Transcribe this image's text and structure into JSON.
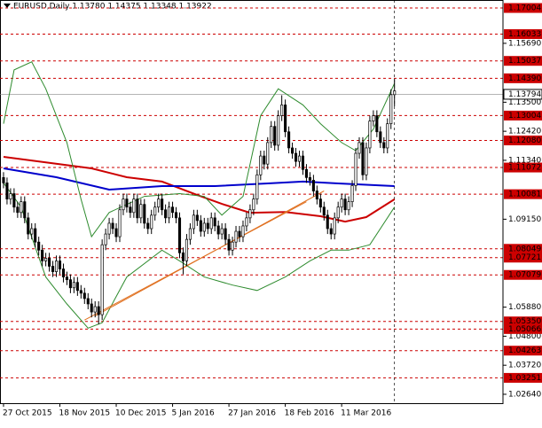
{
  "chart_data": {
    "type": "candlestick",
    "title": "EURUSD,Daily  1.13780 1.14375 1.13348 1.13922",
    "xlim": [
      -1,
      141.8
    ],
    "ylim": [
      1.02309,
      1.17301
    ],
    "xticks": [
      {
        "value": 0,
        "label": "27 Oct 2015"
      },
      {
        "value": 16,
        "label": "18 Nov 2015"
      },
      {
        "value": 32,
        "label": "10 Dec 2015"
      },
      {
        "value": 48,
        "label": "5 Jan 2016"
      },
      {
        "value": 64,
        "label": "27 Jan 2016"
      },
      {
        "value": 80,
        "label": "18 Feb 2016"
      },
      {
        "value": 96,
        "label": "11 Mar 2016"
      }
    ],
    "yticks": [
      {
        "value": 1.1569,
        "label": "1.15690"
      },
      {
        "value": 1.135,
        "label": "1.13500"
      },
      {
        "value": 1.1242,
        "label": "1.12420"
      },
      {
        "value": 1.1134,
        "label": "1.11340"
      },
      {
        "value": 1.0915,
        "label": "1.09150"
      },
      {
        "value": 1.0588,
        "label": "1.05880"
      },
      {
        "value": 1.048,
        "label": "1.04800"
      },
      {
        "value": 1.0372,
        "label": "1.03720"
      },
      {
        "value": 1.0264,
        "label": "1.02640"
      }
    ],
    "levels_color": "#cc0000",
    "levels": [
      1.17004,
      1.16033,
      1.15037,
      {
        "value": 1.1439,
        "label": "1.14390"
      },
      1.13004,
      {
        "value": 1.1208,
        "label": "1.12080"
      },
      1.11072,
      1.10081,
      1.08049,
      1.07721,
      1.07079,
      {
        "value": 1.0535,
        "label": "1.05350"
      },
      1.05066,
      1.04263,
      1.03251
    ],
    "price_box": 1.13794,
    "up_color": "#ffffff",
    "down_color": "#000000",
    "open": [
      1.107,
      1.105,
      1.099,
      1.101,
      1.096,
      1.094,
      1.098,
      1.092,
      1.086,
      1.088,
      1.083,
      1.08,
      1.076,
      1.077,
      1.074,
      1.072,
      1.076,
      1.073,
      1.07,
      1.069,
      1.066,
      1.068,
      1.065,
      1.064,
      1.062,
      1.06,
      1.057,
      1.059,
      1.056,
      1.082,
      1.086,
      1.09,
      1.088,
      1.085,
      1.095,
      1.099,
      1.096,
      1.094,
      1.099,
      1.092,
      1.097,
      1.09,
      1.088,
      1.093,
      1.096,
      1.099,
      1.095,
      1.092,
      1.096,
      1.094,
      1.092,
      1.079,
      1.076,
      1.084,
      1.088,
      1.093,
      1.091,
      1.087,
      1.09,
      1.088,
      1.092,
      1.089,
      1.086,
      1.088,
      1.084,
      1.08,
      1.083,
      1.087,
      1.085,
      1.089,
      1.092,
      1.095,
      1.099,
      1.108,
      1.115,
      1.112,
      1.12,
      1.126,
      1.119,
      1.13,
      1.134,
      1.124,
      1.118,
      1.116,
      1.113,
      1.115,
      1.11,
      1.107,
      1.106,
      1.102,
      1.099,
      1.096,
      1.093,
      1.088,
      1.086,
      1.092,
      1.096,
      1.099,
      1.095,
      1.098,
      1.104,
      1.116,
      1.12,
      1.108,
      1.118,
      1.128,
      1.13,
      1.124,
      1.12,
      1.118,
      1.127,
      1.1378
    ],
    "high": [
      1.109,
      1.107,
      1.103,
      1.103,
      1.098,
      1.1,
      1.1,
      1.094,
      1.09,
      1.09,
      1.085,
      1.082,
      1.079,
      1.079,
      1.076,
      1.078,
      1.078,
      1.075,
      1.072,
      1.071,
      1.07,
      1.07,
      1.067,
      1.066,
      1.064,
      1.062,
      1.061,
      1.061,
      1.084,
      1.088,
      1.092,
      1.092,
      1.09,
      1.097,
      1.101,
      1.101,
      1.098,
      1.101,
      1.101,
      1.099,
      1.099,
      1.092,
      1.095,
      1.098,
      1.101,
      1.101,
      1.097,
      1.098,
      1.098,
      1.096,
      1.094,
      1.081,
      1.086,
      1.09,
      1.095,
      1.095,
      1.093,
      1.092,
      1.092,
      1.094,
      1.094,
      1.091,
      1.09,
      1.09,
      1.086,
      1.085,
      1.089,
      1.089,
      1.091,
      1.094,
      1.097,
      1.101,
      1.11,
      1.117,
      1.117,
      1.122,
      1.128,
      1.128,
      1.132,
      1.1376,
      1.136,
      1.126,
      1.12,
      1.118,
      1.117,
      1.117,
      1.112,
      1.109,
      1.108,
      1.104,
      1.101,
      1.098,
      1.095,
      1.09,
      1.094,
      1.098,
      1.101,
      1.101,
      1.1,
      1.106,
      1.118,
      1.122,
      1.122,
      1.12,
      1.13,
      1.132,
      1.132,
      1.126,
      1.122,
      1.129,
      1.1398,
      1.14375
    ],
    "low": [
      1.103,
      1.097,
      1.097,
      1.094,
      1.092,
      1.092,
      1.09,
      1.084,
      1.084,
      1.081,
      1.078,
      1.074,
      1.074,
      1.072,
      1.07,
      1.07,
      1.071,
      1.068,
      1.067,
      1.064,
      1.064,
      1.063,
      1.062,
      1.06,
      1.058,
      1.055,
      1.055,
      1.0524,
      1.054,
      1.08,
      1.084,
      1.086,
      1.083,
      1.083,
      1.093,
      1.094,
      1.092,
      1.092,
      1.09,
      1.09,
      1.088,
      1.086,
      1.086,
      1.091,
      1.094,
      1.093,
      1.09,
      1.09,
      1.092,
      1.09,
      1.077,
      1.071,
      1.074,
      1.082,
      1.086,
      1.089,
      1.085,
      1.085,
      1.086,
      1.086,
      1.087,
      1.084,
      1.084,
      1.082,
      1.078,
      1.078,
      1.081,
      1.083,
      1.083,
      1.087,
      1.09,
      1.093,
      1.097,
      1.106,
      1.11,
      1.11,
      1.118,
      1.117,
      1.117,
      1.128,
      1.122,
      1.116,
      1.114,
      1.111,
      1.111,
      1.108,
      1.105,
      1.104,
      1.1,
      1.097,
      1.094,
      1.091,
      1.086,
      1.084,
      1.084,
      1.09,
      1.094,
      1.093,
      1.093,
      1.096,
      1.102,
      1.114,
      1.106,
      1.106,
      1.116,
      1.126,
      1.122,
      1.118,
      1.116,
      1.116,
      1.125,
      1.13348
    ],
    "close": [
      1.105,
      1.099,
      1.101,
      1.096,
      1.094,
      1.098,
      1.092,
      1.086,
      1.088,
      1.083,
      1.08,
      1.076,
      1.077,
      1.074,
      1.072,
      1.076,
      1.073,
      1.07,
      1.069,
      1.066,
      1.068,
      1.065,
      1.064,
      1.062,
      1.06,
      1.057,
      1.059,
      1.056,
      1.082,
      1.086,
      1.09,
      1.088,
      1.085,
      1.095,
      1.099,
      1.096,
      1.094,
      1.099,
      1.092,
      1.097,
      1.09,
      1.088,
      1.093,
      1.096,
      1.099,
      1.095,
      1.092,
      1.096,
      1.094,
      1.092,
      1.079,
      1.076,
      1.084,
      1.088,
      1.093,
      1.091,
      1.087,
      1.09,
      1.088,
      1.092,
      1.089,
      1.086,
      1.088,
      1.084,
      1.08,
      1.083,
      1.087,
      1.085,
      1.089,
      1.092,
      1.095,
      1.099,
      1.108,
      1.115,
      1.112,
      1.12,
      1.126,
      1.119,
      1.13,
      1.134,
      1.124,
      1.118,
      1.116,
      1.113,
      1.115,
      1.11,
      1.107,
      1.106,
      1.102,
      1.099,
      1.096,
      1.093,
      1.088,
      1.086,
      1.092,
      1.096,
      1.099,
      1.095,
      1.098,
      1.104,
      1.116,
      1.12,
      1.108,
      1.118,
      1.128,
      1.13,
      1.124,
      1.12,
      1.118,
      1.127,
      1.1378,
      1.13922
    ],
    "overlays": [
      {
        "color": "#cc0000",
        "width": 2,
        "x": [
          0,
          25,
          35,
          45,
          55,
          62,
          70,
          80,
          90,
          97,
          103,
          111
        ],
        "values": [
          1.1147,
          1.1104,
          1.1071,
          1.1055,
          1.1005,
          1.0972,
          1.0939,
          1.0942,
          1.0926,
          1.0906,
          1.0923,
          1.0989
        ]
      },
      {
        "color": "#0000cc",
        "width": 2,
        "x": [
          0,
          15,
          30,
          45,
          60,
          75,
          85,
          95,
          111
        ],
        "values": [
          1.1104,
          1.1071,
          1.1025,
          1.1038,
          1.1038,
          1.1048,
          1.1055,
          1.1048,
          1.1038
        ]
      },
      {
        "color": "#2e8b2e",
        "width": 1,
        "x": [
          0,
          3,
          8,
          12,
          18,
          22,
          25,
          30,
          40,
          50,
          57,
          62,
          68,
          73,
          78,
          85,
          90,
          96,
          100,
          105,
          111
        ],
        "values": [
          1.127,
          1.147,
          1.15,
          1.14,
          1.12,
          1.099,
          1.085,
          1.094,
          1.1,
          1.101,
          1.1,
          1.093,
          1.1,
          1.13,
          1.14,
          1.134,
          1.127,
          1.12,
          1.117,
          1.125,
          1.142
        ]
      },
      {
        "color": "#2e8b2e",
        "width": 1,
        "x": [
          0,
          5,
          12,
          18,
          24,
          28,
          35,
          45,
          50,
          57,
          65,
          72,
          80,
          87,
          93,
          98,
          104,
          111
        ],
        "values": [
          1.105,
          1.096,
          1.07,
          1.06,
          1.051,
          1.053,
          1.07,
          1.08,
          1.076,
          1.07,
          1.067,
          1.065,
          1.07,
          1.076,
          1.08,
          1.08,
          1.082,
          1.096
        ]
      },
      {
        "color": "#e07020",
        "width": 1,
        "x": [
          23,
          86
        ],
        "values": [
          1.054,
          1.098
        ]
      },
      {
        "color": "#e07020",
        "width": 1,
        "x": [
          26,
          91
        ],
        "values": [
          1.0555,
          1.102
        ]
      }
    ]
  }
}
